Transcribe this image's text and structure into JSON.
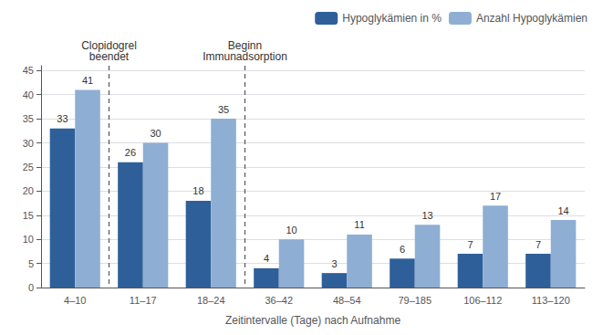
{
  "chart_data": {
    "type": "bar",
    "xlabel": "Zeitintervalle (Tage) nach Aufnahme",
    "categories": [
      "4–10",
      "11–17",
      "18–24",
      "36–42",
      "48–54",
      "79–185",
      "106–112",
      "113–120"
    ],
    "series": [
      {
        "name": "Hypoglykämien in %",
        "color": "#2e5f99",
        "values": [
          33,
          26,
          18,
          4,
          3,
          6,
          7,
          7
        ]
      },
      {
        "name": "Anzahl Hypoglykämien",
        "color": "#8eaed4",
        "values": [
          41,
          30,
          35,
          10,
          11,
          13,
          17,
          14
        ]
      }
    ],
    "ylim": [
      0,
      46
    ],
    "yticks": [
      0,
      5,
      10,
      15,
      20,
      25,
      30,
      35,
      40,
      45
    ],
    "grid": true,
    "legend": "upper right",
    "data_labels": true,
    "annotations": [
      {
        "text": "Clopidogrel\nbeendet",
        "between": [
          "4–10",
          "11–17"
        ]
      },
      {
        "text": "Beginn\nImmunadsorption",
        "between": [
          "18–24",
          "36–42"
        ]
      }
    ]
  }
}
